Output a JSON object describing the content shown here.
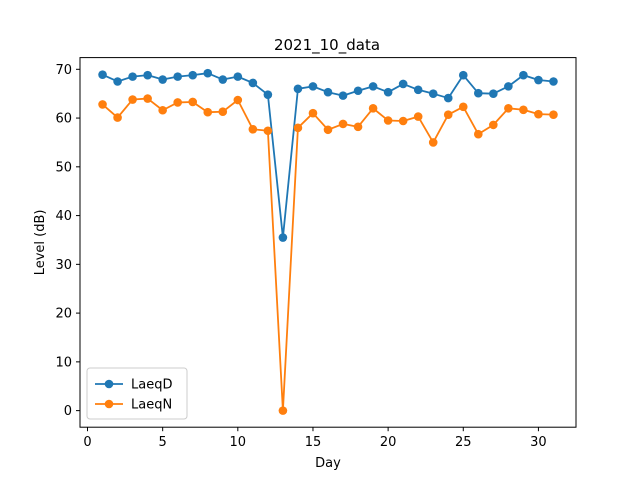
{
  "chart_data": {
    "type": "line",
    "title": "2021_10_data",
    "xlabel": "Day",
    "ylabel": "Level (dB)",
    "xlim": [
      -0.5,
      32.5
    ],
    "ylim": [
      -3.4,
      72.4
    ],
    "xticks": [
      0,
      5,
      10,
      15,
      20,
      25,
      30
    ],
    "yticks": [
      0,
      10,
      20,
      30,
      40,
      50,
      60,
      70
    ],
    "grid": false,
    "legend_position": "lower-left",
    "x": [
      1,
      2,
      3,
      4,
      5,
      6,
      7,
      8,
      9,
      10,
      11,
      12,
      13,
      14,
      15,
      16,
      17,
      18,
      19,
      20,
      21,
      22,
      23,
      24,
      25,
      26,
      27,
      28,
      29,
      30,
      31
    ],
    "series": [
      {
        "name": "LaeqD",
        "color": "#1f77b4",
        "values": [
          68.9,
          67.5,
          68.5,
          68.8,
          67.9,
          68.5,
          68.8,
          69.2,
          67.9,
          68.5,
          67.2,
          64.8,
          35.5,
          66.0,
          66.5,
          65.3,
          64.6,
          65.6,
          66.5,
          65.3,
          67.0,
          65.8,
          65.0,
          64.1,
          68.8,
          65.1,
          65.0,
          66.5,
          68.8,
          67.8,
          67.5
        ]
      },
      {
        "name": "LaeqN",
        "color": "#ff7f0e",
        "values": [
          62.8,
          60.1,
          63.8,
          64.0,
          61.6,
          63.2,
          63.3,
          61.2,
          61.3,
          63.7,
          57.7,
          57.4,
          0.0,
          58.0,
          61.0,
          57.6,
          58.8,
          58.2,
          62.0,
          59.5,
          59.4,
          60.3,
          55.0,
          60.7,
          62.3,
          56.7,
          58.6,
          62.0,
          61.7,
          60.8,
          60.7
        ]
      }
    ]
  }
}
